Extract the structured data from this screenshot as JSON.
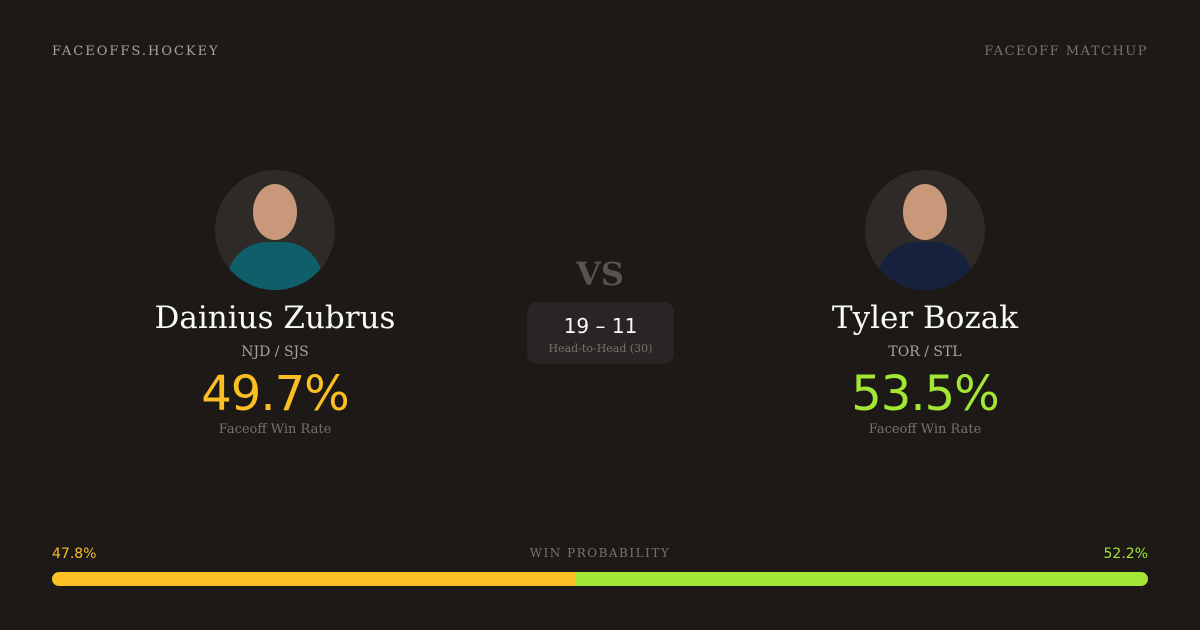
{
  "header": {
    "brand": "FACEOFFS.HOCKEY",
    "tag": "FACEOFF MATCHUP"
  },
  "colors": {
    "player1": "#fbbf24",
    "player2": "#a3e635",
    "background": "#1c1917"
  },
  "player1": {
    "name": "Dainius Zubrus",
    "teams": "NJD / SJS",
    "win_rate": "49.7%",
    "win_rate_label": "Faceoff Win Rate",
    "jersey_color": "#0f5f6a"
  },
  "player2": {
    "name": "Tyler Bozak",
    "teams": "TOR / STL",
    "win_rate": "53.5%",
    "win_rate_label": "Faceoff Win Rate",
    "jersey_color": "#16213d"
  },
  "vs": "VS",
  "head_to_head": {
    "score": "19 – 11",
    "label": "Head-to-Head (30)"
  },
  "win_probability": {
    "label": "WIN PROBABILITY",
    "player1": "47.8%",
    "player2": "52.2%",
    "player1_value": 47.8,
    "player2_value": 52.2
  }
}
